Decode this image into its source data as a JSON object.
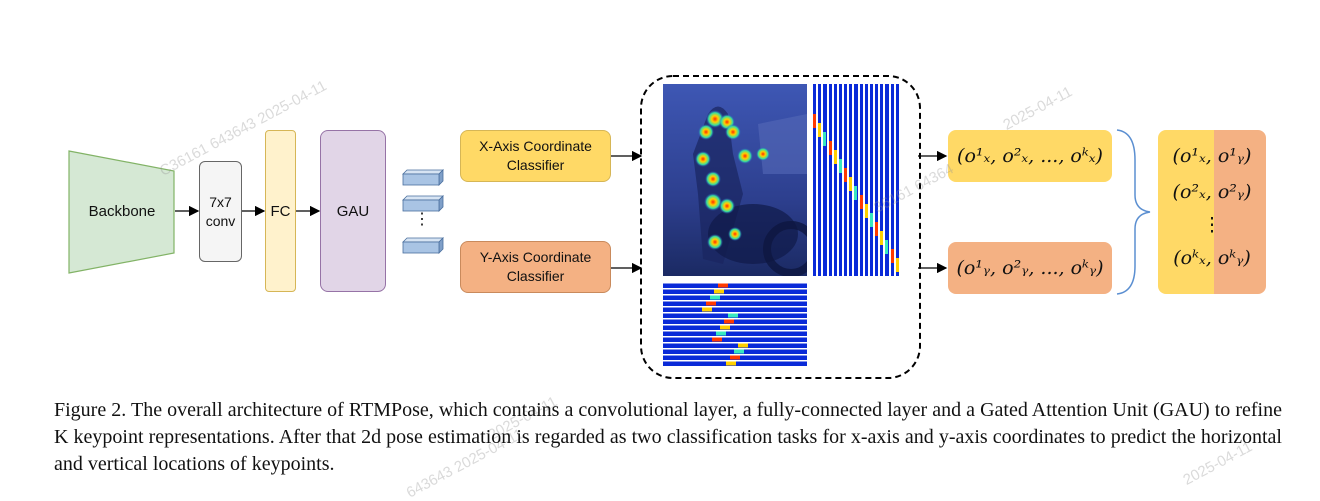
{
  "diagram": {
    "backbone_label": "Backbone",
    "conv_label_line1": "7x7",
    "conv_label_line2": "conv",
    "fc_label": "FC",
    "gau_label": "GAU",
    "token_ellipsis": "⋮",
    "x_classifier_line1": "X-Axis Coordinate",
    "x_classifier_line2": "Classifier",
    "y_classifier_line1": "Y-Axis Coordinate",
    "y_classifier_line2": "Classifier",
    "x_output": "(o¹ₓ, o²ₓ, ..., oᵏₓ)",
    "y_output": "(o¹ᵧ, o²ᵧ, ..., oᵏᵧ)",
    "final_rows": [
      "(o¹ₓ, o¹ᵧ)",
      "(o²ₓ, o²ᵧ)",
      "⋮",
      "(oᵏₓ, oᵏᵧ)"
    ],
    "colors": {
      "backbone": "#d5e8d4",
      "conv": "#f5f5f5",
      "fc": "#fff2cc",
      "gau": "#e1d5e7",
      "x_classifier": "#ffd966",
      "y_classifier": "#f4b183",
      "token": "#a9c4e4"
    }
  },
  "caption": "Figure 2. The overall architecture of RTMPose, which contains a convolutional layer, a fully-connected layer and a Gated Attention Unit (GAU) to refine K keypoint representations. After that 2d pose estimation is regarded as two classification tasks for x-axis and y-axis coordinates to predict the horizontal and vertical locations of keypoints.",
  "watermarks": [
    "C36161 643643 2025-04-11",
    "2025-04-11",
    "36161 64364",
    "2025-04-11",
    "643643 2025-04-11",
    "2025-04-11"
  ]
}
